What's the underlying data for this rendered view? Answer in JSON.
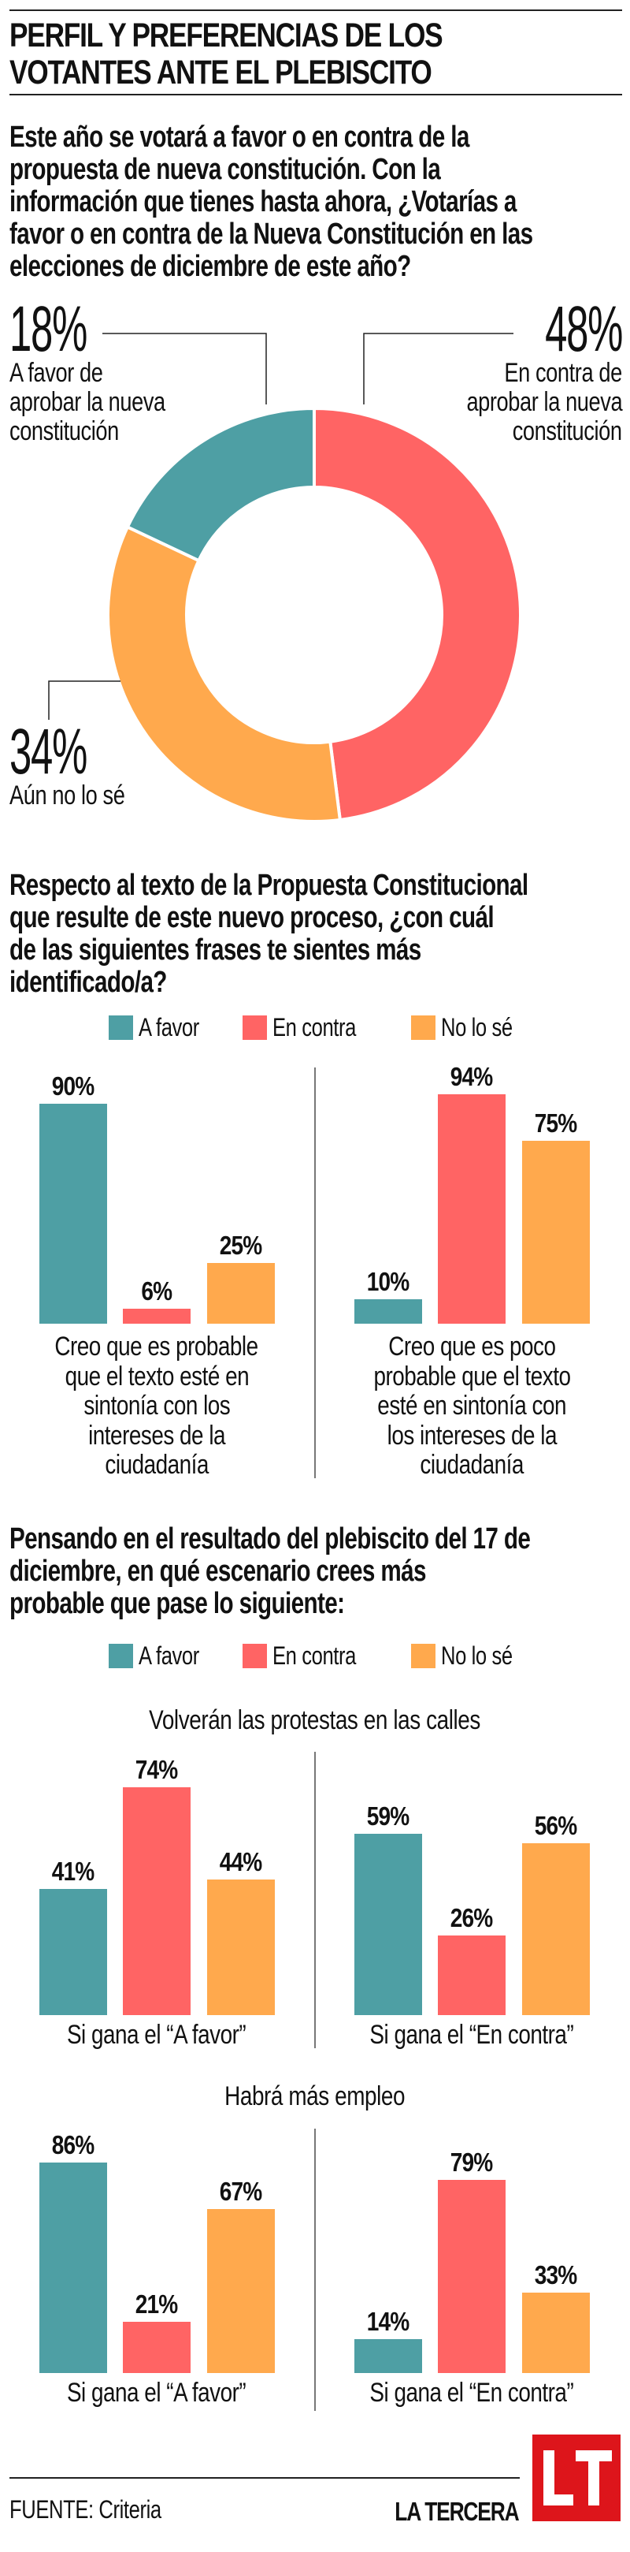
{
  "title": {
    "lines": [
      "PERFIL Y PREFERENCIAS DE LOS",
      "VOTANTES ANTE EL PLEBISCITO"
    ]
  },
  "colors": {
    "a_favor": "#4E9FA4",
    "en_contra": "#FF6464",
    "no_lo_se": "#FFA94D",
    "brand_red": "#DD151B"
  },
  "legend": {
    "items": [
      "A favor",
      "En contra",
      "No lo sé"
    ]
  },
  "section1": {
    "question_lines": [
      "Este año se votará a favor  o en contra de la",
      "propuesta de nueva constitución. Con la",
      "información que tienes hasta ahora, ¿Votarías a",
      "favor o en contra de la Nueva Constitución en las",
      "elecciones de diciembre de este año?"
    ]
  },
  "section2": {
    "question_lines": [
      "Respecto al texto de la Propuesta Constitucional",
      "que resulte de este nuevo proceso, ¿con cuál",
      "de las siguientes frases te sientes más",
      "identificado/a?"
    ]
  },
  "section3": {
    "question_lines": [
      "Pensando en el resultado del plebiscito del 17 de",
      "diciembre, en qué escenario crees más",
      "probable que pase lo siguiente:"
    ]
  },
  "chart_data": [
    {
      "type": "pie",
      "variant": "donut",
      "slices": [
        {
          "label_lines": [
            "En contra de",
            "aprobar la nueva",
            "constitución"
          ],
          "value": 48,
          "display": "48%",
          "color": "#FF6464"
        },
        {
          "label_lines": [
            "Aún no lo sé"
          ],
          "value": 34,
          "display": "34%",
          "color": "#FFA94D"
        },
        {
          "label_lines": [
            "A favor de",
            "aprobar la nueva",
            "constitución"
          ],
          "value": 18,
          "display": "18%",
          "color": "#4E9FA4"
        }
      ],
      "start": "top",
      "direction": "clockwise"
    },
    {
      "type": "bar",
      "title": "",
      "legend": [
        "A favor",
        "En contra",
        "No lo sé"
      ],
      "legend_position": "top-center",
      "ylim": [
        0,
        100
      ],
      "groups": [
        {
          "label_lines": [
            "Creo que es probable",
            "que el texto esté en",
            "sintonía con los",
            "intereses de la",
            "ciudadanía"
          ],
          "values": [
            90,
            6,
            25
          ],
          "display": [
            "90%",
            "6%",
            "25%"
          ]
        },
        {
          "label_lines": [
            "Creo que es poco",
            "probable que el texto",
            "esté en sintonía con",
            "los intereses de la",
            "ciudadanía"
          ],
          "values": [
            10,
            94,
            75
          ],
          "display": [
            "10%",
            "94%",
            "75%"
          ]
        }
      ]
    },
    {
      "type": "bar",
      "title": "Volverán las protestas en las calles",
      "legend": [
        "A favor",
        "En contra",
        "No lo sé"
      ],
      "legend_position": "top-center",
      "ylim": [
        0,
        80
      ],
      "groups": [
        {
          "label_lines": [
            "Si gana el “A favor”"
          ],
          "values": [
            41,
            74,
            44
          ],
          "display": [
            "41%",
            "74%",
            "44%"
          ]
        },
        {
          "label_lines": [
            "Si gana el “En contra”"
          ],
          "values": [
            59,
            26,
            56
          ],
          "display": [
            "59%",
            "26%",
            "56%"
          ]
        }
      ]
    },
    {
      "type": "bar",
      "title": "Habrá más empleo",
      "legend": [
        "A favor",
        "En contra",
        "No lo sé"
      ],
      "ylim": [
        0,
        100
      ],
      "groups": [
        {
          "label_lines": [
            "Si gana el “A favor”"
          ],
          "values": [
            86,
            21,
            67
          ],
          "display": [
            "86%",
            "21%",
            "67%"
          ]
        },
        {
          "label_lines": [
            "Si gana el “En contra”"
          ],
          "values": [
            14,
            79,
            33
          ],
          "display": [
            "14%",
            "79%",
            "33%"
          ]
        }
      ]
    }
  ],
  "footer": {
    "source": "FUENTE: Criteria",
    "brand": "LA TERCERA",
    "logo_text": "LT"
  }
}
